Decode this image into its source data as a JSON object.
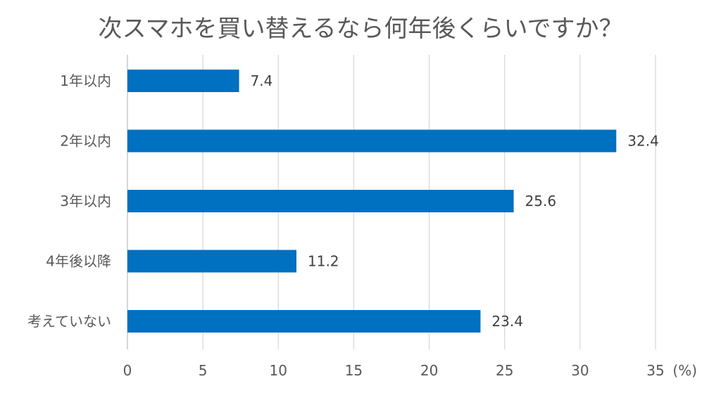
{
  "chart_data": {
    "type": "bar",
    "orientation": "horizontal",
    "title": "次スマホを買い替えるなら何年後くらいですか？",
    "categories": [
      "1年以内",
      "2年以内",
      "3年以内",
      "4年後以降",
      "考えていない"
    ],
    "values": [
      7.4,
      32.4,
      25.6,
      11.2,
      23.4
    ],
    "value_labels": [
      "7.4",
      "32.4",
      "25.6",
      "11.2",
      "23.4"
    ],
    "xlim": [
      0,
      35
    ],
    "x_ticks": [
      0,
      5,
      10,
      15,
      20,
      25,
      30,
      35
    ],
    "unit_label": "(%)",
    "grid": true,
    "bar_color": "#0070c0",
    "legend": "none"
  }
}
